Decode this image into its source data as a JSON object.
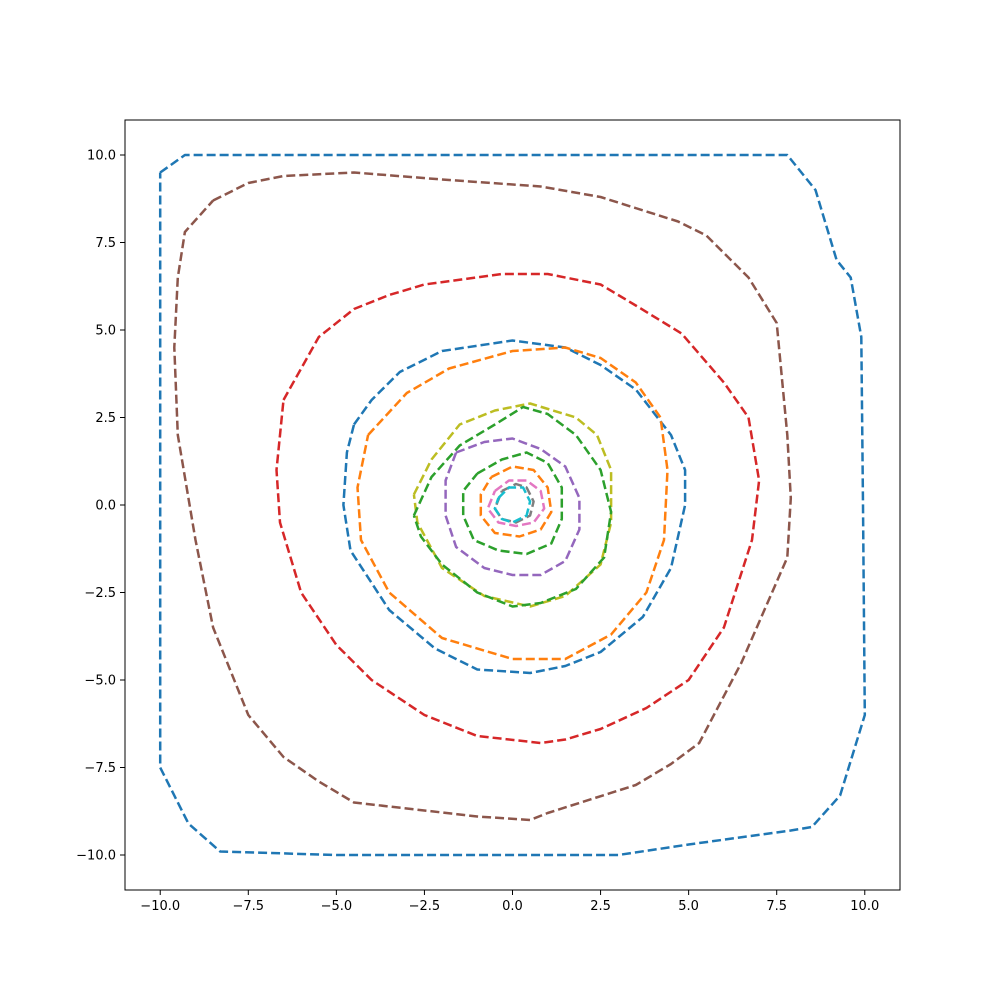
{
  "chart_data": {
    "type": "line",
    "title": "",
    "xlabel": "",
    "ylabel": "",
    "xlim": [
      -11,
      11
    ],
    "ylim": [
      -11,
      11
    ],
    "grid": false,
    "legend": "none",
    "xticks": [
      -10.0,
      -7.5,
      -5.0,
      -2.5,
      0.0,
      2.5,
      5.0,
      7.5,
      10.0
    ],
    "yticks": [
      -10.0,
      -7.5,
      -5.0,
      -2.5,
      0.0,
      2.5,
      5.0,
      7.5,
      10.0
    ],
    "xtick_labels": [
      "−10.0",
      "−7.5",
      "−5.0",
      "−2.5",
      "0.0",
      "2.5",
      "5.0",
      "7.5",
      "10.0"
    ],
    "ytick_labels": [
      "−10.0",
      "−7.5",
      "−5.0",
      "−2.5",
      "0.0",
      "2.5",
      "5.0",
      "7.5",
      "10.0"
    ],
    "line_style": "dashed",
    "series": [
      {
        "color": "#1f77b4",
        "points": [
          [
            -10.0,
            9.5
          ],
          [
            -9.3,
            10.0
          ],
          [
            -5.0,
            10.0
          ],
          [
            0.0,
            10.0
          ],
          [
            5.0,
            10.0
          ],
          [
            7.8,
            10.0
          ],
          [
            8.6,
            9.0
          ],
          [
            9.2,
            7.0
          ],
          [
            9.6,
            6.5
          ],
          [
            9.9,
            4.8
          ],
          [
            9.95,
            0.0
          ],
          [
            10.0,
            -6.0
          ],
          [
            9.3,
            -8.3
          ],
          [
            8.5,
            -9.2
          ],
          [
            7.9,
            -9.3
          ],
          [
            5.0,
            -9.7
          ],
          [
            3.0,
            -10.0
          ],
          [
            0.0,
            -10.0
          ],
          [
            -5.0,
            -10.0
          ],
          [
            -8.3,
            -9.9
          ],
          [
            -9.2,
            -9.1
          ],
          [
            -10.0,
            -7.5
          ],
          [
            -10.0,
            0.0
          ],
          [
            -10.0,
            9.5
          ]
        ]
      },
      {
        "color": "#8c564b",
        "points": [
          [
            -8.5,
            8.7
          ],
          [
            -7.5,
            9.2
          ],
          [
            -6.5,
            9.4
          ],
          [
            -4.5,
            9.5
          ],
          [
            -2.0,
            9.3
          ],
          [
            0.8,
            9.1
          ],
          [
            2.5,
            8.8
          ],
          [
            4.7,
            8.1
          ],
          [
            5.5,
            7.7
          ],
          [
            6.7,
            6.5
          ],
          [
            7.5,
            5.2
          ],
          [
            7.8,
            2.0
          ],
          [
            7.9,
            0.2
          ],
          [
            7.8,
            -1.5
          ],
          [
            6.5,
            -4.5
          ],
          [
            5.3,
            -6.8
          ],
          [
            4.5,
            -7.4
          ],
          [
            3.5,
            -8.0
          ],
          [
            1.0,
            -8.8
          ],
          [
            0.5,
            -9.0
          ],
          [
            -1.0,
            -8.9
          ],
          [
            -4.5,
            -8.5
          ],
          [
            -5.5,
            -7.9
          ],
          [
            -6.5,
            -7.2
          ],
          [
            -7.5,
            -6.0
          ],
          [
            -8.5,
            -3.5
          ],
          [
            -9.0,
            -1.0
          ],
          [
            -9.5,
            2.0
          ],
          [
            -9.6,
            4.5
          ],
          [
            -9.5,
            6.5
          ],
          [
            -9.3,
            7.8
          ],
          [
            -8.5,
            8.7
          ]
        ]
      },
      {
        "color": "#d62728",
        "points": [
          [
            -6.5,
            3.0
          ],
          [
            -5.5,
            4.8
          ],
          [
            -4.5,
            5.6
          ],
          [
            -3.5,
            6.0
          ],
          [
            -2.5,
            6.3
          ],
          [
            -0.3,
            6.6
          ],
          [
            1.0,
            6.6
          ],
          [
            2.5,
            6.3
          ],
          [
            3.5,
            5.7
          ],
          [
            4.8,
            4.9
          ],
          [
            6.0,
            3.5
          ],
          [
            6.7,
            2.5
          ],
          [
            7.0,
            0.7
          ],
          [
            6.8,
            -1.0
          ],
          [
            6.0,
            -3.5
          ],
          [
            5.0,
            -5.0
          ],
          [
            3.8,
            -5.8
          ],
          [
            2.5,
            -6.4
          ],
          [
            1.5,
            -6.7
          ],
          [
            0.8,
            -6.8
          ],
          [
            -1.0,
            -6.6
          ],
          [
            -2.5,
            -6.0
          ],
          [
            -4.0,
            -5.0
          ],
          [
            -5.0,
            -4.0
          ],
          [
            -6.0,
            -2.5
          ],
          [
            -6.6,
            -0.5
          ],
          [
            -6.7,
            1.0
          ],
          [
            -6.5,
            3.0
          ]
        ]
      },
      {
        "color": "#1f77b4",
        "points": [
          [
            -4.5,
            2.3
          ],
          [
            -4.0,
            3.0
          ],
          [
            -3.2,
            3.8
          ],
          [
            -2.0,
            4.4
          ],
          [
            0.0,
            4.7
          ],
          [
            1.5,
            4.5
          ],
          [
            2.5,
            4.0
          ],
          [
            3.5,
            3.3
          ],
          [
            4.5,
            2.0
          ],
          [
            4.9,
            1.0
          ],
          [
            4.9,
            0.0
          ],
          [
            4.5,
            -1.8
          ],
          [
            3.7,
            -3.2
          ],
          [
            2.5,
            -4.2
          ],
          [
            1.5,
            -4.6
          ],
          [
            0.5,
            -4.8
          ],
          [
            -1.0,
            -4.7
          ],
          [
            -2.2,
            -4.1
          ],
          [
            -3.5,
            -3.0
          ],
          [
            -4.6,
            -1.3
          ],
          [
            -4.8,
            0.0
          ],
          [
            -4.7,
            1.5
          ],
          [
            -4.5,
            2.3
          ]
        ]
      },
      {
        "color": "#ff7f0e",
        "points": [
          [
            -4.1,
            2.0
          ],
          [
            -3.0,
            3.2
          ],
          [
            -1.8,
            3.9
          ],
          [
            0.0,
            4.4
          ],
          [
            1.5,
            4.5
          ],
          [
            2.5,
            4.2
          ],
          [
            3.5,
            3.5
          ],
          [
            4.2,
            2.5
          ],
          [
            4.4,
            1.0
          ],
          [
            4.3,
            -1.0
          ],
          [
            3.8,
            -2.5
          ],
          [
            2.8,
            -3.7
          ],
          [
            1.5,
            -4.4
          ],
          [
            0.0,
            -4.4
          ],
          [
            -2.0,
            -3.8
          ],
          [
            -3.5,
            -2.5
          ],
          [
            -4.3,
            -1.0
          ],
          [
            -4.4,
            0.5
          ],
          [
            -4.1,
            2.0
          ]
        ]
      },
      {
        "color": "#bcbd22",
        "points": [
          [
            -2.8,
            0.3
          ],
          [
            -2.3,
            1.3
          ],
          [
            -1.5,
            2.3
          ],
          [
            -0.5,
            2.7
          ],
          [
            0.5,
            2.9
          ],
          [
            1.8,
            2.5
          ],
          [
            2.4,
            2.0
          ],
          [
            2.8,
            1.0
          ],
          [
            2.8,
            -0.5
          ],
          [
            2.5,
            -1.7
          ],
          [
            1.5,
            -2.6
          ],
          [
            0.5,
            -2.9
          ],
          [
            -0.8,
            -2.6
          ],
          [
            -2.0,
            -1.8
          ],
          [
            -2.7,
            -0.5
          ],
          [
            -2.8,
            0.3
          ]
        ]
      },
      {
        "color": "#2ca02c",
        "points": [
          [
            -2.8,
            -0.3
          ],
          [
            -2.3,
            0.8
          ],
          [
            -1.5,
            1.7
          ],
          [
            -0.5,
            2.3
          ],
          [
            0.3,
            2.8
          ],
          [
            1.0,
            2.6
          ],
          [
            1.8,
            2.0
          ],
          [
            2.5,
            1.0
          ],
          [
            2.8,
            -0.2
          ],
          [
            2.6,
            -1.5
          ],
          [
            1.8,
            -2.4
          ],
          [
            0.8,
            -2.8
          ],
          [
            0.0,
            -2.9
          ],
          [
            -1.0,
            -2.5
          ],
          [
            -2.0,
            -1.7
          ],
          [
            -2.6,
            -0.9
          ],
          [
            -2.8,
            -0.3
          ]
        ]
      },
      {
        "color": "#9467bd",
        "points": [
          [
            -1.6,
            1.5
          ],
          [
            -0.8,
            1.8
          ],
          [
            0.0,
            1.9
          ],
          [
            0.8,
            1.6
          ],
          [
            1.5,
            1.1
          ],
          [
            1.9,
            0.2
          ],
          [
            1.9,
            -0.7
          ],
          [
            1.5,
            -1.6
          ],
          [
            0.8,
            -2.0
          ],
          [
            0.0,
            -2.0
          ],
          [
            -0.8,
            -1.8
          ],
          [
            -1.6,
            -1.2
          ],
          [
            -1.9,
            -0.3
          ],
          [
            -1.9,
            0.7
          ],
          [
            -1.6,
            1.5
          ]
        ]
      },
      {
        "color": "#2ca02c",
        "points": [
          [
            -1.0,
            0.9
          ],
          [
            -0.3,
            1.3
          ],
          [
            0.4,
            1.5
          ],
          [
            1.0,
            1.2
          ],
          [
            1.4,
            0.5
          ],
          [
            1.4,
            -0.4
          ],
          [
            1.1,
            -1.1
          ],
          [
            0.4,
            -1.4
          ],
          [
            -0.4,
            -1.3
          ],
          [
            -1.1,
            -1.0
          ],
          [
            -1.4,
            -0.3
          ],
          [
            -1.4,
            0.4
          ],
          [
            -1.0,
            0.9
          ]
        ]
      },
      {
        "color": "#ff7f0e",
        "points": [
          [
            -0.6,
            0.8
          ],
          [
            0.0,
            1.1
          ],
          [
            0.6,
            1.0
          ],
          [
            1.0,
            0.5
          ],
          [
            1.1,
            -0.2
          ],
          [
            0.8,
            -0.7
          ],
          [
            0.2,
            -0.9
          ],
          [
            -0.5,
            -0.8
          ],
          [
            -0.9,
            -0.3
          ],
          [
            -0.9,
            0.3
          ],
          [
            -0.6,
            0.8
          ]
        ]
      },
      {
        "color": "#e377c2",
        "points": [
          [
            -0.5,
            0.4
          ],
          [
            -0.1,
            0.7
          ],
          [
            0.4,
            0.7
          ],
          [
            0.8,
            0.4
          ],
          [
            0.9,
            -0.1
          ],
          [
            0.6,
            -0.5
          ],
          [
            0.1,
            -0.6
          ],
          [
            -0.4,
            -0.5
          ],
          [
            -0.7,
            -0.1
          ],
          [
            -0.5,
            0.4
          ]
        ]
      },
      {
        "color": "#7f7f7f",
        "points": [
          [
            -0.3,
            0.4
          ],
          [
            0.1,
            0.6
          ],
          [
            0.4,
            0.5
          ],
          [
            0.6,
            0.1
          ],
          [
            0.5,
            -0.3
          ],
          [
            0.1,
            -0.5
          ],
          [
            -0.3,
            -0.4
          ],
          [
            -0.5,
            -0.1
          ],
          [
            -0.3,
            0.4
          ]
        ]
      },
      {
        "color": "#17becf",
        "points": [
          [
            -0.4,
            0.2
          ],
          [
            -0.1,
            0.5
          ],
          [
            0.3,
            0.5
          ],
          [
            0.5,
            0.1
          ],
          [
            0.4,
            -0.3
          ],
          [
            0.0,
            -0.5
          ],
          [
            -0.3,
            -0.4
          ],
          [
            -0.5,
            -0.1
          ],
          [
            -0.4,
            0.2
          ]
        ]
      }
    ]
  }
}
